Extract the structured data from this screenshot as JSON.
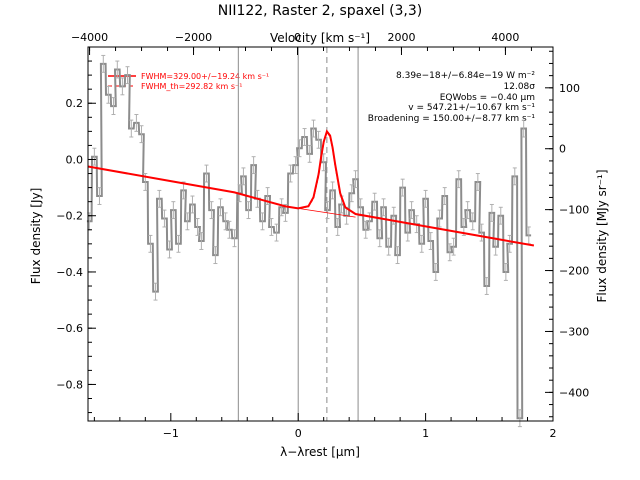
{
  "chart_data": {
    "type": "line",
    "title": "NII122, Raster 2, spaxel (3,3)",
    "xlabel": "λ−λrest [μm]",
    "ylabel": "Flux density [Jy]",
    "top_xlabel": "Velocity [km s⁻¹]",
    "right_ylabel": "Flux density [MJy sr⁻¹]",
    "xlim": [
      -1.65,
      2.0
    ],
    "ylim": [
      -0.93,
      0.4
    ],
    "top_xlim": [
      -4030,
      4915
    ],
    "right_ylim": [
      -447,
      167
    ],
    "xticks": [
      -1,
      0,
      1,
      2
    ],
    "xtick_labels": [
      "−1",
      "0",
      "1",
      "2"
    ],
    "yticks": [
      -0.8,
      -0.6,
      -0.4,
      -0.2,
      0.0,
      0.2
    ],
    "ytick_labels": [
      "−0.8",
      "−0.6",
      "−0.4",
      "−0.2",
      "0.0",
      "0.2"
    ],
    "top_xticks": [
      -4000,
      -2000,
      0,
      2000,
      4000
    ],
    "top_xtick_labels": [
      "−4000",
      "−2000",
      "0",
      "2000",
      "4000"
    ],
    "right_yticks": [
      100,
      0,
      -100,
      -200,
      -300,
      -400
    ],
    "right_ytick_labels": [
      "100",
      "0",
      "−100",
      "−200",
      "−300",
      "−400"
    ],
    "vlines_solid": [
      -0.47,
      0.0,
      0.47
    ],
    "vline_dashed": 0.225,
    "annotations": [
      "8.39e−18+/−6.84e−19 W m⁻²",
      "12.08σ",
      "EQWobs = −0.40 μm",
      "v = 547.21+/−10.67 km s⁻¹",
      "Broadening = 150.00+/−8.77 km s⁻¹"
    ],
    "legend": [
      "FWHM=329.00+/−19.24 km s⁻¹",
      "FWHM_th=292.82 km s⁻¹"
    ],
    "legend_position": "top-left",
    "colors": {
      "data": "#8c8c8c",
      "fit": "#ff0000",
      "grid": "#8c8c8c"
    },
    "series": [
      {
        "style": "step",
        "x": [
          -1.64,
          -1.6,
          -1.56,
          -1.53,
          -1.49,
          -1.45,
          -1.42,
          -1.38,
          -1.34,
          -1.31,
          -1.27,
          -1.23,
          -1.2,
          -1.16,
          -1.12,
          -1.09,
          -1.05,
          -1.01,
          -0.98,
          -0.94,
          -0.9,
          -0.87,
          -0.83,
          -0.79,
          -0.76,
          -0.72,
          -0.68,
          -0.65,
          -0.61,
          -0.57,
          -0.54,
          -0.5,
          -0.46,
          -0.43,
          -0.39,
          -0.35,
          -0.32,
          -0.28,
          -0.24,
          -0.21,
          -0.17,
          -0.13,
          -0.1,
          -0.06,
          -0.02,
          0.01,
          0.05,
          0.09,
          0.12,
          0.16,
          0.2,
          0.23,
          0.27,
          0.31,
          0.34,
          0.38,
          0.42,
          0.45,
          0.49,
          0.53,
          0.56,
          0.6,
          0.64,
          0.67,
          0.71,
          0.75,
          0.78,
          0.82,
          0.86,
          0.89,
          0.93,
          0.97,
          1.0,
          1.04,
          1.08,
          1.11,
          1.15,
          1.19,
          1.22,
          1.26,
          1.3,
          1.33,
          1.37,
          1.41,
          1.44,
          1.48,
          1.52,
          1.55,
          1.59,
          1.63,
          1.66,
          1.7,
          1.74,
          1.77,
          1.81
        ],
        "y": [
          -0.22,
          0.01,
          -0.13,
          0.34,
          0.23,
          0.19,
          0.32,
          0.26,
          0.3,
          0.11,
          0.13,
          0.09,
          -0.08,
          -0.3,
          -0.47,
          -0.14,
          -0.21,
          -0.32,
          -0.18,
          -0.3,
          -0.11,
          -0.22,
          -0.16,
          -0.24,
          -0.29,
          -0.05,
          -0.18,
          -0.34,
          -0.17,
          -0.22,
          -0.25,
          -0.28,
          -0.12,
          -0.06,
          -0.18,
          -0.02,
          -0.14,
          -0.22,
          -0.13,
          -0.24,
          -0.26,
          -0.17,
          -0.19,
          -0.05,
          -0.02,
          0.04,
          0.08,
          0.02,
          0.11,
          0.07,
          -0.01,
          -0.18,
          -0.11,
          -0.24,
          -0.16,
          -0.2,
          -0.12,
          -0.07,
          -0.17,
          -0.25,
          -0.22,
          -0.15,
          -0.28,
          -0.17,
          -0.31,
          -0.2,
          -0.34,
          -0.1,
          -0.26,
          -0.18,
          -0.23,
          -0.3,
          -0.14,
          -0.29,
          -0.4,
          -0.21,
          -0.13,
          -0.33,
          -0.31,
          -0.07,
          -0.24,
          -0.18,
          -0.22,
          -0.08,
          -0.26,
          -0.45,
          -0.19,
          -0.31,
          -0.2,
          -0.4,
          -0.3,
          -0.06,
          -0.92,
          0.11,
          -0.27
        ],
        "yerr": 0.03
      },
      {
        "name": "FWHM=329.00+/−19.24 km s⁻¹",
        "style": "line",
        "x": [
          -1.65,
          -1.0,
          -0.5,
          -0.1,
          0.0,
          0.08,
          0.12,
          0.16,
          0.18,
          0.2,
          0.225,
          0.25,
          0.27,
          0.29,
          0.33,
          0.37,
          0.45,
          0.8,
          1.2,
          1.6,
          1.85
        ],
        "y": [
          -0.025,
          -0.077,
          -0.117,
          -0.167,
          -0.174,
          -0.166,
          -0.134,
          -0.052,
          0.008,
          0.063,
          0.1,
          0.085,
          0.042,
          -0.018,
          -0.12,
          -0.17,
          -0.194,
          -0.222,
          -0.254,
          -0.286,
          -0.306
        ]
      },
      {
        "name": "FWHM_th=292.82 km s⁻¹",
        "style": "dashed",
        "x": [
          0.0,
          0.08,
          0.12,
          0.16,
          0.18,
          0.2,
          0.225,
          0.25,
          0.27,
          0.29,
          0.33,
          0.37,
          0.45
        ],
        "y": [
          -0.174,
          -0.168,
          -0.14,
          -0.06,
          0.0,
          0.058,
          0.098,
          0.08,
          0.036,
          -0.026,
          -0.126,
          -0.172,
          -0.194
        ]
      }
    ]
  }
}
